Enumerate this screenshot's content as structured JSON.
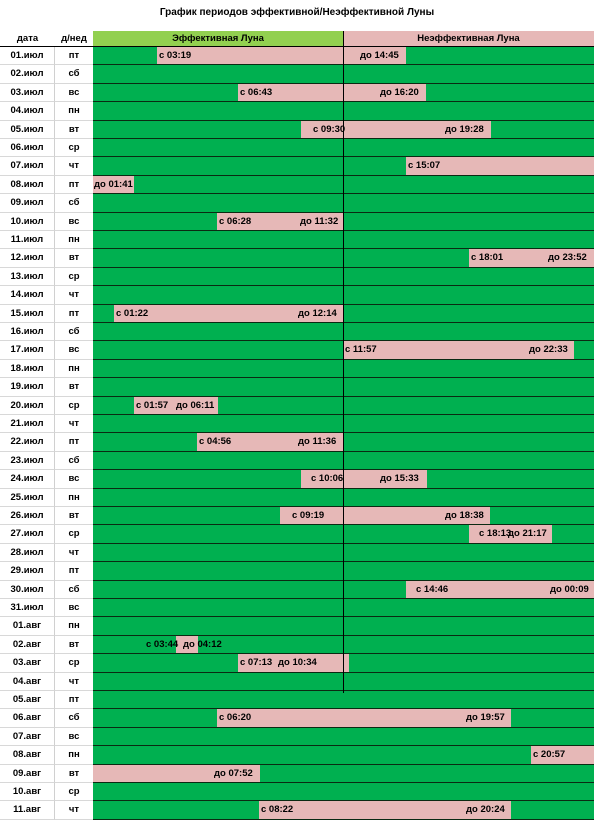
{
  "title": "График  периодов эффективной/Неэффективной Луны",
  "headers": {
    "date": "дата",
    "dow": "д/нед",
    "effective": "Эффективная Луна",
    "ineffective": "Неэффективная Луна"
  },
  "colors": {
    "effective": "#00b050",
    "ineffective": "#e6b8b7",
    "effective_header": "#92d050",
    "ineffective_header": "#e6b8b7"
  },
  "rows": [
    {
      "date": "01.июл",
      "dow": "пт",
      "segs": [
        [
          157,
          406
        ]
      ],
      "labels": [
        [
          "с 03:19",
          159
        ],
        [
          "до 14:45",
          360
        ]
      ]
    },
    {
      "date": "02.июл",
      "dow": "сб",
      "segs": [],
      "labels": []
    },
    {
      "date": "03.июл",
      "dow": "вс",
      "segs": [
        [
          238,
          426
        ]
      ],
      "labels": [
        [
          "с 06:43",
          240
        ],
        [
          "до 16:20",
          380
        ]
      ]
    },
    {
      "date": "04.июл",
      "dow": "пн",
      "segs": [],
      "labels": []
    },
    {
      "date": "05.июл",
      "dow": "вт",
      "segs": [
        [
          301,
          491
        ]
      ],
      "labels": [
        [
          "с 09:30",
          313
        ],
        [
          "до 19:28",
          445
        ]
      ]
    },
    {
      "date": "06.июл",
      "dow": "ср",
      "segs": [],
      "labels": []
    },
    {
      "date": "07.июл",
      "dow": "чт",
      "segs": [
        [
          406,
          594
        ]
      ],
      "labels": [
        [
          "с 15:07",
          408
        ]
      ]
    },
    {
      "date": "08.июл",
      "dow": "пт",
      "segs": [
        [
          93,
          134
        ]
      ],
      "labels": [
        [
          "до 01:41",
          94
        ]
      ]
    },
    {
      "date": "09.июл",
      "dow": "сб",
      "segs": [],
      "labels": []
    },
    {
      "date": "10.июл",
      "dow": "вс",
      "segs": [
        [
          217,
          343
        ]
      ],
      "labels": [
        [
          "с 06:28",
          219
        ],
        [
          "до 11:32",
          300
        ]
      ]
    },
    {
      "date": "11.июл",
      "dow": "пн",
      "segs": [],
      "labels": []
    },
    {
      "date": "12.июл",
      "dow": "вт",
      "segs": [
        [
          469,
          594
        ]
      ],
      "labels": [
        [
          "с 18:01",
          471
        ],
        [
          "до 23:52",
          548
        ]
      ]
    },
    {
      "date": "13.июл",
      "dow": "ср",
      "segs": [],
      "labels": []
    },
    {
      "date": "14.июл",
      "dow": "чт",
      "segs": [],
      "labels": []
    },
    {
      "date": "15.июл",
      "dow": "пт",
      "segs": [
        [
          114,
          343
        ]
      ],
      "labels": [
        [
          "с 01:22",
          116
        ],
        [
          "до 12:14",
          298
        ]
      ]
    },
    {
      "date": "16.июл",
      "dow": "сб",
      "segs": [],
      "labels": []
    },
    {
      "date": "17.июл",
      "dow": "вс",
      "segs": [
        [
          343,
          574
        ]
      ],
      "labels": [
        [
          "с 11:57",
          345
        ],
        [
          "до 22:33",
          529
        ]
      ]
    },
    {
      "date": "18.июл",
      "dow": "пн",
      "segs": [],
      "labels": []
    },
    {
      "date": "19.июл",
      "dow": "вт",
      "segs": [],
      "labels": []
    },
    {
      "date": "20.июл",
      "dow": "ср",
      "segs": [
        [
          134,
          218
        ]
      ],
      "labels": [
        [
          "с 01:57",
          136
        ],
        [
          "до 06:11",
          176
        ]
      ]
    },
    {
      "date": "21.июл",
      "dow": "чт",
      "segs": [],
      "labels": []
    },
    {
      "date": "22.июл",
      "dow": "пт",
      "segs": [
        [
          197,
          343
        ]
      ],
      "labels": [
        [
          "с 04:56",
          199
        ],
        [
          "до 11:36",
          298
        ]
      ]
    },
    {
      "date": "23.июл",
      "dow": "сб",
      "segs": [],
      "labels": []
    },
    {
      "date": "24.июл",
      "dow": "вс",
      "segs": [
        [
          301,
          427
        ]
      ],
      "labels": [
        [
          "с 10:06",
          311
        ],
        [
          "до 15:33",
          380
        ]
      ]
    },
    {
      "date": "25.июл",
      "dow": "пн",
      "segs": [],
      "labels": []
    },
    {
      "date": "26.июл",
      "dow": "вт",
      "segs": [
        [
          280,
          490
        ]
      ],
      "labels": [
        [
          "с 09:19",
          292
        ],
        [
          "до 18:38",
          445
        ]
      ]
    },
    {
      "date": "27.июл",
      "dow": "ср",
      "segs": [
        [
          469,
          552
        ]
      ],
      "labels": [
        [
          "с 18:13",
          479
        ],
        [
          "до 21:17",
          508
        ]
      ]
    },
    {
      "date": "28.июл",
      "dow": "чт",
      "segs": [],
      "labels": []
    },
    {
      "date": "29.июл",
      "dow": "пт",
      "segs": [],
      "labels": []
    },
    {
      "date": "30.июл",
      "dow": "сб",
      "segs": [
        [
          406,
          594
        ]
      ],
      "labels": [
        [
          "с 14:46",
          416
        ],
        [
          "до 00:09",
          550
        ]
      ]
    },
    {
      "date": "31.июл",
      "dow": "вс",
      "segs": [],
      "labels": []
    },
    {
      "date": "01.авг",
      "dow": "пн",
      "segs": [],
      "labels": []
    },
    {
      "date": "02.авг",
      "dow": "вт",
      "segs": [
        [
          176,
          198
        ]
      ],
      "labels": [
        [
          "с 03:44",
          146
        ],
        [
          "до 04:12",
          183
        ]
      ]
    },
    {
      "date": "03.авг",
      "dow": "ср",
      "segs": [
        [
          238,
          349
        ]
      ],
      "labels": [
        [
          "с 07:13",
          240
        ],
        [
          "до 10:34",
          278
        ]
      ]
    },
    {
      "date": "04.авг",
      "dow": "чт",
      "segs": [],
      "labels": []
    },
    {
      "date": "05.авг",
      "dow": "пт",
      "segs": [],
      "labels": []
    },
    {
      "date": "06.авг",
      "dow": "сб",
      "segs": [
        [
          217,
          511
        ]
      ],
      "labels": [
        [
          "с 06:20",
          219
        ],
        [
          "до 19:57",
          466
        ]
      ]
    },
    {
      "date": "07.авг",
      "dow": "вс",
      "segs": [],
      "labels": []
    },
    {
      "date": "08.авг",
      "dow": "пн",
      "segs": [
        [
          531,
          594
        ]
      ],
      "labels": [
        [
          "с 20:57",
          533
        ]
      ]
    },
    {
      "date": "09.авг",
      "dow": "вт",
      "segs": [
        [
          93,
          260
        ]
      ],
      "labels": [
        [
          "до 07:52",
          214
        ]
      ]
    },
    {
      "date": "10.авг",
      "dow": "ср",
      "segs": [],
      "labels": []
    },
    {
      "date": "11.авг",
      "dow": "чт",
      "segs": [
        [
          259,
          511
        ]
      ],
      "labels": [
        [
          "с 08:22",
          261
        ],
        [
          "до 20:24",
          466
        ]
      ]
    }
  ]
}
